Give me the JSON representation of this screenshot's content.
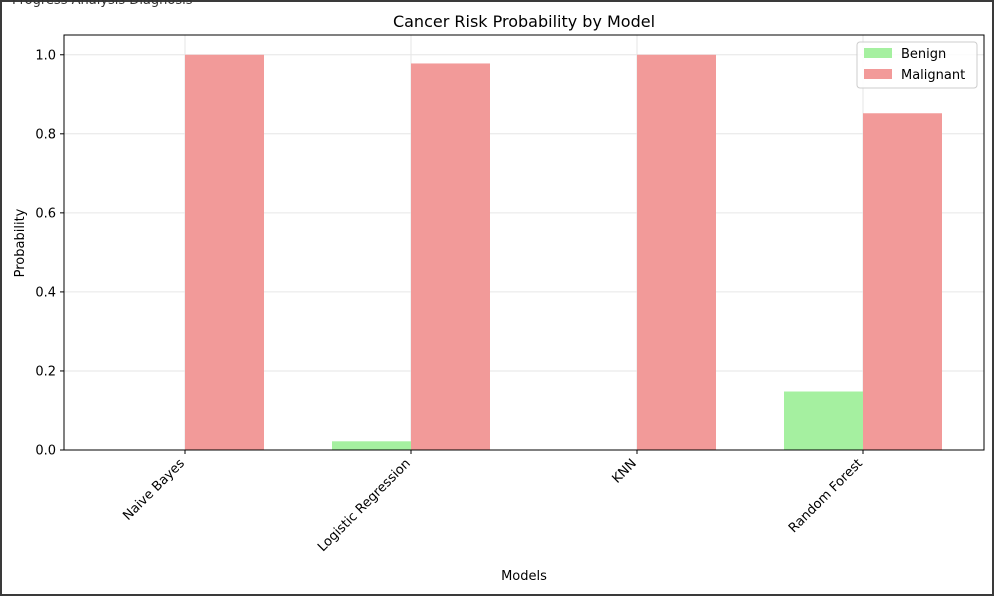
{
  "window": {
    "clipped_caption": "Progress Analysis Diagnosis"
  },
  "chart_data": {
    "type": "bar",
    "title": "Cancer Risk Probability by Model",
    "xlabel": "Models",
    "ylabel": "Probability",
    "categories": [
      "Naive Bayes",
      "Logistic Regression",
      "KNN",
      "Random Forest"
    ],
    "series": [
      {
        "name": "Benign",
        "color": "#a5f0a0",
        "values": [
          0.0,
          0.022,
          0.0,
          0.148
        ]
      },
      {
        "name": "Malignant",
        "color": "#f29a99",
        "values": [
          1.0,
          0.978,
          1.0,
          0.852
        ]
      }
    ],
    "ylim": [
      0,
      1.05
    ],
    "yticks": [
      "0.0",
      "0.2",
      "0.4",
      "0.6",
      "0.8",
      "1.0"
    ],
    "grid": true,
    "legend_position": "top-right"
  }
}
